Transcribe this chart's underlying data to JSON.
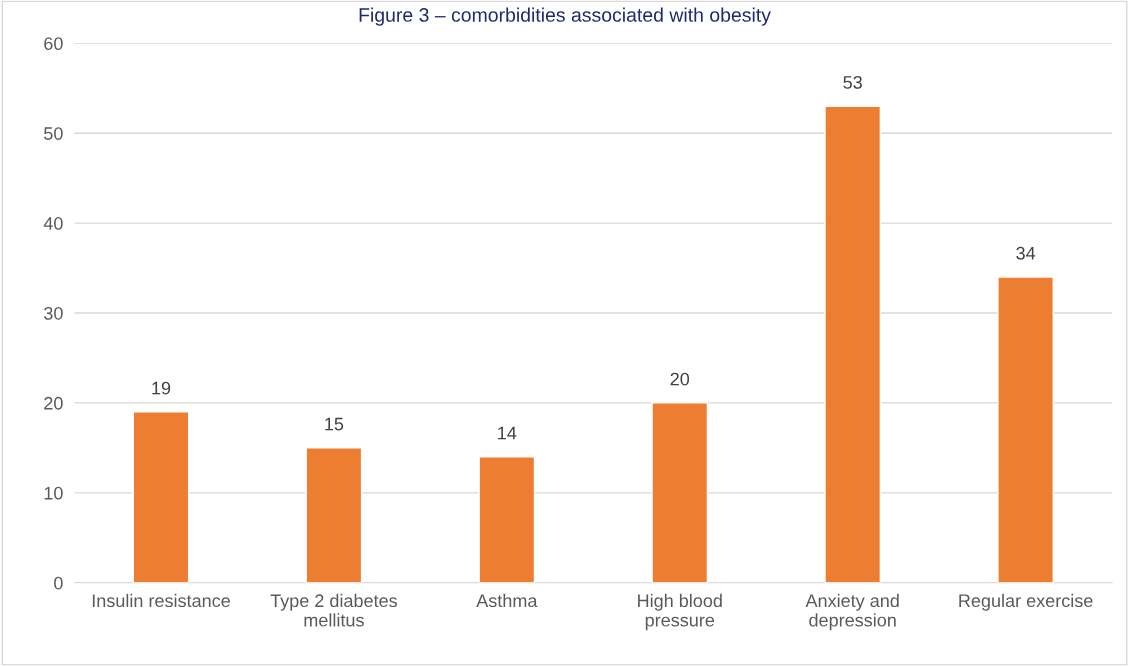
{
  "chart_data": {
    "type": "bar",
    "title": "Figure 3 – comorbidities associated with obesity",
    "categories": [
      "Insulin resistance",
      "Type 2 diabetes\nmellitus",
      "Asthma",
      "High blood\npressure",
      "Anxiety and\ndepression",
      "Regular exercise"
    ],
    "values": [
      19,
      15,
      14,
      20,
      53,
      34
    ],
    "color": "#ed7d31",
    "ylim": [
      0,
      60
    ],
    "yticks": [
      0,
      10,
      20,
      30,
      40,
      50,
      60
    ],
    "grid": "y",
    "data_labels": true
  }
}
